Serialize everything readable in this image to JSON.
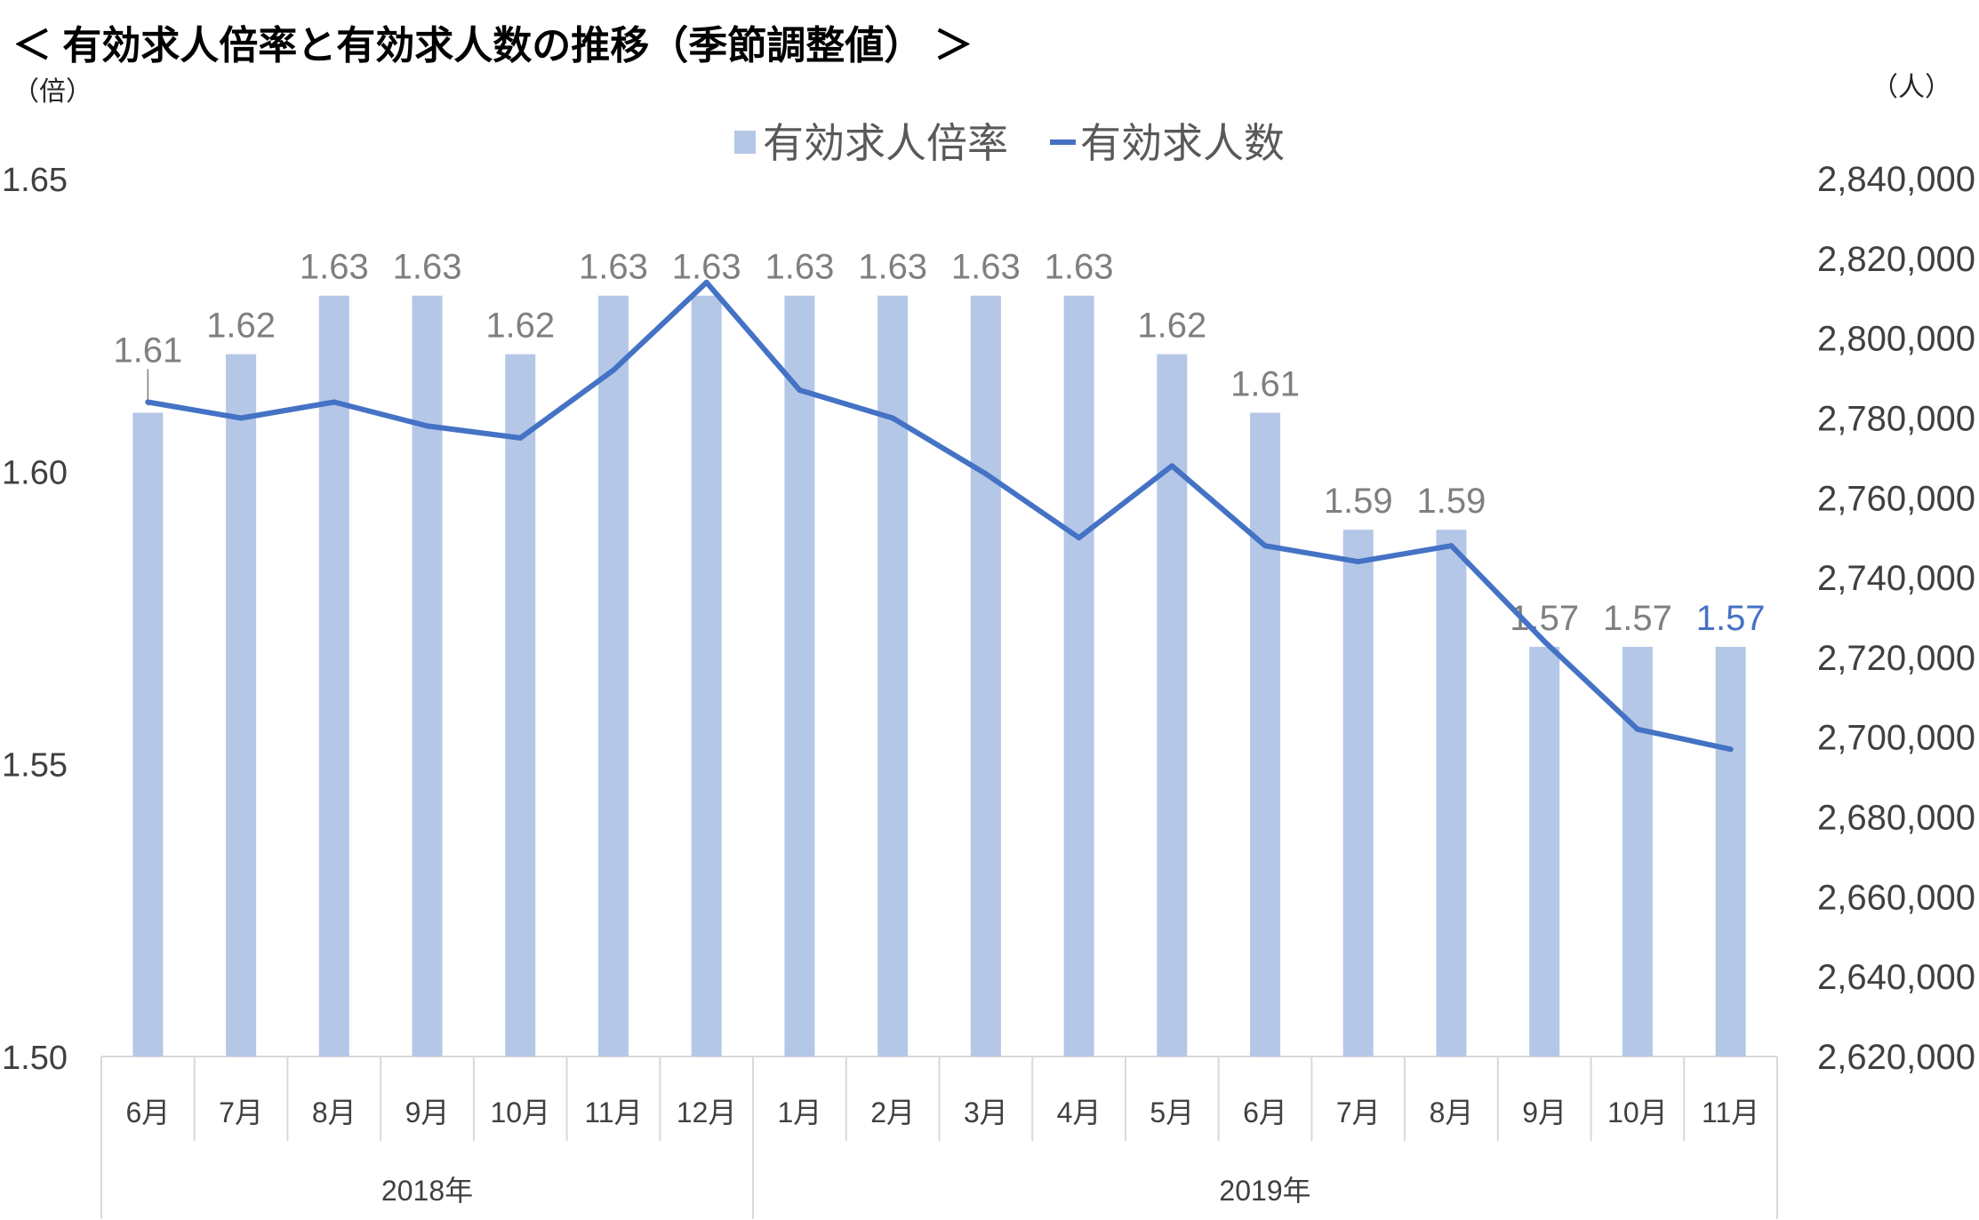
{
  "chart_data": {
    "type": "bar",
    "title": "＜ 有効求人倍率と有効求人数の推移（季節調整値） ＞",
    "categories": [
      "6月",
      "7月",
      "8月",
      "9月",
      "10月",
      "11月",
      "12月",
      "1月",
      "2月",
      "3月",
      "4月",
      "5月",
      "6月",
      "7月",
      "8月",
      "9月",
      "10月",
      "11月"
    ],
    "category_groups": [
      {
        "label": "2018年",
        "count": 7
      },
      {
        "label": "2019年",
        "count": 11
      }
    ],
    "series": [
      {
        "name": "有効求人倍率",
        "type": "bar",
        "axis": "left",
        "color": "#B4C7E7",
        "values": [
          1.61,
          1.62,
          1.63,
          1.63,
          1.62,
          1.63,
          1.63,
          1.63,
          1.63,
          1.63,
          1.63,
          1.62,
          1.61,
          1.59,
          1.59,
          1.57,
          1.57,
          1.57
        ]
      },
      {
        "name": "有効求人数",
        "type": "line",
        "axis": "right",
        "color": "#4472C4",
        "values": [
          2784000,
          2780000,
          2784000,
          2778000,
          2775000,
          2792000,
          2814000,
          2787000,
          2780000,
          2766000,
          2750000,
          2768000,
          2748000,
          2744000,
          2748000,
          2724000,
          2702000,
          2697000
        ]
      }
    ],
    "y_left": {
      "unit": "（倍）",
      "range": [
        1.5,
        1.65
      ],
      "tick_labels": [
        "1.65",
        "1.60",
        "1.55",
        "1.50"
      ]
    },
    "y_right": {
      "unit": "（人）",
      "range": [
        2620000,
        2840000
      ],
      "tick_labels": [
        "2,840,000",
        "2,820,000",
        "2,800,000",
        "2,780,000",
        "2,760,000",
        "2,740,000",
        "2,720,000",
        "2,700,000",
        "2,680,000",
        "2,660,000",
        "2,640,000",
        "2,620,000"
      ]
    },
    "data_labels": {
      "series_index": 0,
      "color": "#7F7F7F",
      "highlight_index": 17,
      "highlight_color": "#4472C4"
    },
    "legend": "top",
    "grid": false,
    "colors": {
      "axis_line": "#D9D9D9"
    }
  }
}
